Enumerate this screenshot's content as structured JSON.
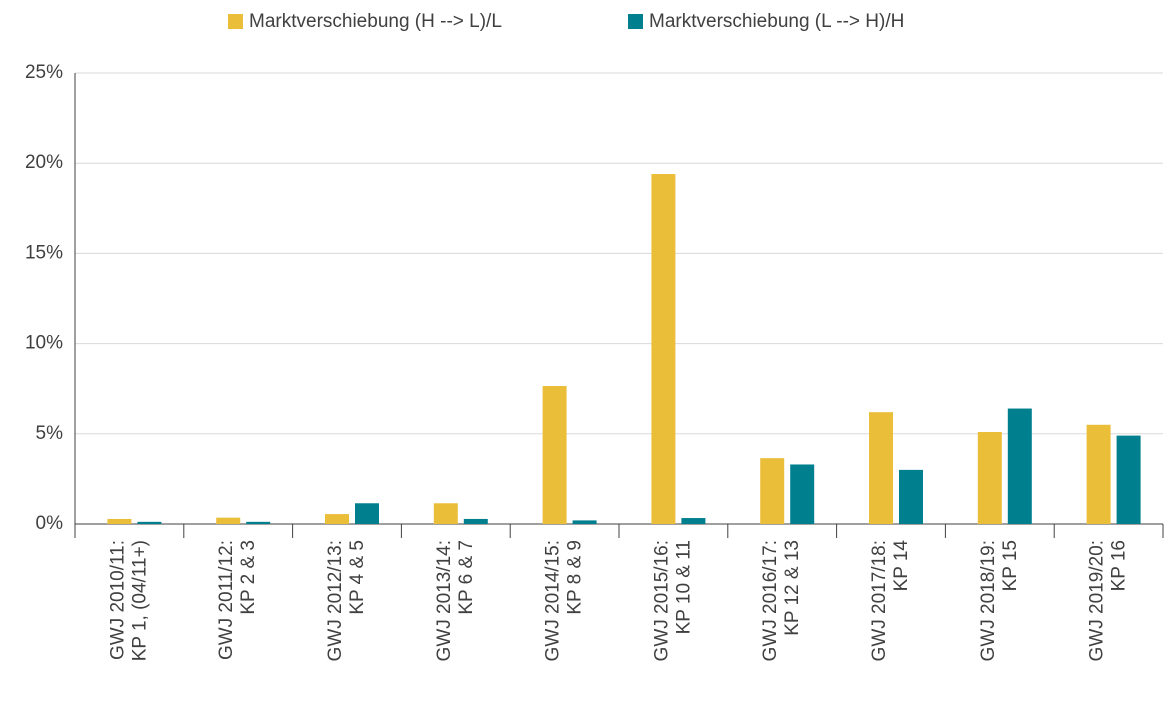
{
  "chart_data": {
    "type": "bar",
    "categories": [
      [
        "GWJ 2010/11:",
        "KP 1, (04/11+)"
      ],
      [
        "GWJ 2011/12:",
        "KP 2 & 3"
      ],
      [
        "GWJ 2012/13:",
        "KP 4 & 5"
      ],
      [
        "GWJ 2013/14:",
        "KP 6 & 7"
      ],
      [
        "GWJ 2014/15:",
        "KP 8 & 9"
      ],
      [
        "GWJ 2015/16:",
        "KP 10 & 11"
      ],
      [
        "GWJ 2016/17:",
        "KP 12 & 13"
      ],
      [
        "GWJ 2017/18:",
        "KP 14"
      ],
      [
        "GWJ 2018/19:",
        "KP 15"
      ],
      [
        "GWJ 2019/20:",
        "KP 16"
      ]
    ],
    "series": [
      {
        "name": "Marktverschiebung (H --> L)/L",
        "color": "#ebbe3a",
        "values": [
          0.28,
          0.35,
          0.55,
          1.15,
          7.65,
          19.4,
          3.65,
          6.2,
          5.1,
          5.5
        ]
      },
      {
        "name": "Marktverschiebung (L --> H)/H",
        "color": "#00808f",
        "values": [
          0.12,
          0.12,
          1.15,
          0.28,
          0.2,
          0.33,
          3.3,
          3.0,
          6.4,
          4.9
        ]
      }
    ],
    "ylim": [
      0,
      25
    ],
    "yticks": [
      {
        "value": 0,
        "label": "0%"
      },
      {
        "value": 5,
        "label": "5%"
      },
      {
        "value": 10,
        "label": "10%"
      },
      {
        "value": 15,
        "label": "15%"
      },
      {
        "value": 20,
        "label": "20%"
      },
      {
        "value": 25,
        "label": "25%"
      }
    ],
    "grid": true,
    "legend": "top"
  }
}
